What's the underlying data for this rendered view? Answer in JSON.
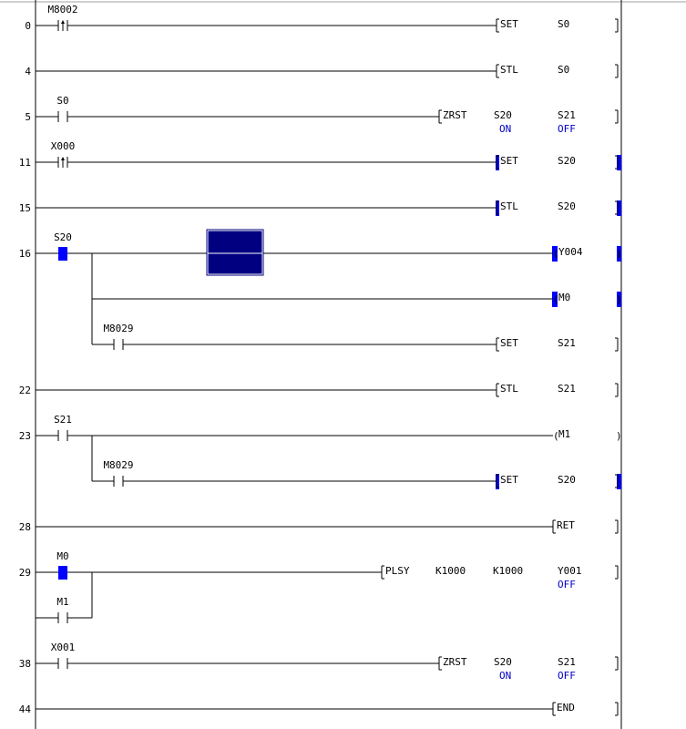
{
  "colors": {
    "selection": "#0000ff",
    "cursor": "#000080",
    "sub_text": "#0000c8"
  },
  "rungs": [
    {
      "step": "0",
      "contact": {
        "device": "M8002",
        "kind": "rising-edge"
      },
      "instruction": {
        "kind": "apply",
        "op": "SET",
        "args": [
          "S0"
        ]
      }
    },
    {
      "step": "4",
      "instruction": {
        "kind": "apply",
        "op": "STL",
        "args": [
          "S0"
        ]
      }
    },
    {
      "step": "5",
      "contact": {
        "device": "S0",
        "kind": "normally-open"
      },
      "instruction": {
        "kind": "apply",
        "op": "ZRST",
        "args": [
          "S20",
          "S21"
        ],
        "sub": [
          "ON",
          "OFF"
        ]
      }
    },
    {
      "step": "11",
      "contact": {
        "device": "X000",
        "kind": "rising-edge"
      },
      "instruction": {
        "kind": "apply",
        "op": "SET",
        "args": [
          "S20"
        ],
        "selected": true
      }
    },
    {
      "step": "15",
      "instruction": {
        "kind": "apply",
        "op": "STL",
        "args": [
          "S20"
        ],
        "selected": true
      }
    },
    {
      "step": "16",
      "contact": {
        "device": "S20",
        "kind": "selected"
      },
      "instruction": {
        "kind": "coil",
        "op": "Y004",
        "selected": true
      },
      "cursor": true
    },
    {
      "step": "",
      "instruction": {
        "kind": "coil",
        "op": "M0",
        "selected": true
      }
    },
    {
      "step": "",
      "contact": {
        "device": "M8029",
        "kind": "normally-open",
        "branch": true
      },
      "instruction": {
        "kind": "apply",
        "op": "SET",
        "args": [
          "S21"
        ]
      }
    },
    {
      "step": "22",
      "instruction": {
        "kind": "apply",
        "op": "STL",
        "args": [
          "S21"
        ]
      }
    },
    {
      "step": "23",
      "contact": {
        "device": "S21",
        "kind": "normally-open"
      },
      "instruction": {
        "kind": "coil",
        "op": "M1"
      }
    },
    {
      "step": "",
      "contact": {
        "device": "M8029",
        "kind": "normally-open",
        "branch": true
      },
      "instruction": {
        "kind": "apply",
        "op": "SET",
        "args": [
          "S20"
        ],
        "selected": true
      }
    },
    {
      "step": "28",
      "instruction": {
        "kind": "end",
        "op": "RET"
      }
    },
    {
      "step": "29",
      "contact": {
        "device": "M0",
        "kind": "selected"
      },
      "instruction": {
        "kind": "apply",
        "op": "PLSY",
        "args": [
          "K1000",
          "K1000",
          "Y001"
        ],
        "sub": [
          "",
          "",
          "OFF"
        ]
      }
    },
    {
      "step": "",
      "contact": {
        "device": "M1",
        "kind": "normally-open"
      }
    },
    {
      "step": "38",
      "contact": {
        "device": "X001",
        "kind": "normally-open"
      },
      "instruction": {
        "kind": "apply",
        "op": "ZRST",
        "args": [
          "S20",
          "S21"
        ],
        "sub": [
          "ON",
          "OFF"
        ]
      }
    },
    {
      "step": "44",
      "instruction": {
        "kind": "end",
        "op": "END"
      }
    }
  ]
}
